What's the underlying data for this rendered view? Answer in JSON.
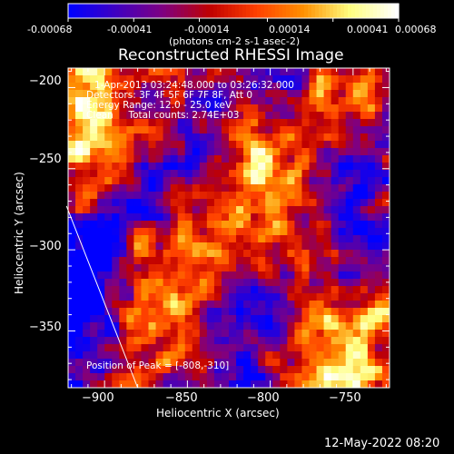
{
  "chart_data": {
    "type": "heatmap",
    "title": "Reconstructed RHESSI Image",
    "colorbar": {
      "ticks": [
        -0.00068,
        -0.00041,
        -0.00014,
        0.00014,
        0.00041,
        0.00068
      ],
      "tick_labels": [
        "-0.00068",
        "-0.00041",
        "-0.00014",
        "0.00014",
        "0.00041",
        "0.00068"
      ],
      "unit_label": "(photons cm-2 s-1 asec-2)",
      "range": [
        -0.00068,
        0.00068
      ],
      "colormap": [
        "#0000ff",
        "#4000c0",
        "#800080",
        "#c00000",
        "#ff4000",
        "#ff9000",
        "#ffff80",
        "#ffffff"
      ]
    },
    "annotations": [
      "1-Apr-2013 03:24:48.000 to 03:26:32.000",
      "Detectors: 3F 4F 5F 6F 7F 8F, Att 0",
      "Energy Range: 12.0 - 25.0 keV",
      "Clean     Total counts: 2.74E+03"
    ],
    "peak_label": "Position of Peak = [-808,-310]",
    "xlabel": "Heliocentric X (arcsec)",
    "ylabel": "Heliocentric Y (arcsec)",
    "xlim": [
      -922,
      -728
    ],
    "ylim": [
      -385,
      -188
    ],
    "xticks": [
      -900,
      -850,
      -800,
      -750
    ],
    "yticks": [
      -350,
      -300,
      -250,
      -200
    ],
    "xtick_labels": [
      "−900",
      "−850",
      "−800",
      "−750"
    ],
    "ytick_labels": [
      "−350",
      "−300",
      "−250",
      "−200"
    ],
    "limb_line": [
      [
        -923,
        -273
      ],
      [
        -880,
        -385
      ]
    ],
    "grid": false
  },
  "footer": {
    "timestamp": "12-May-2022 08:20"
  }
}
